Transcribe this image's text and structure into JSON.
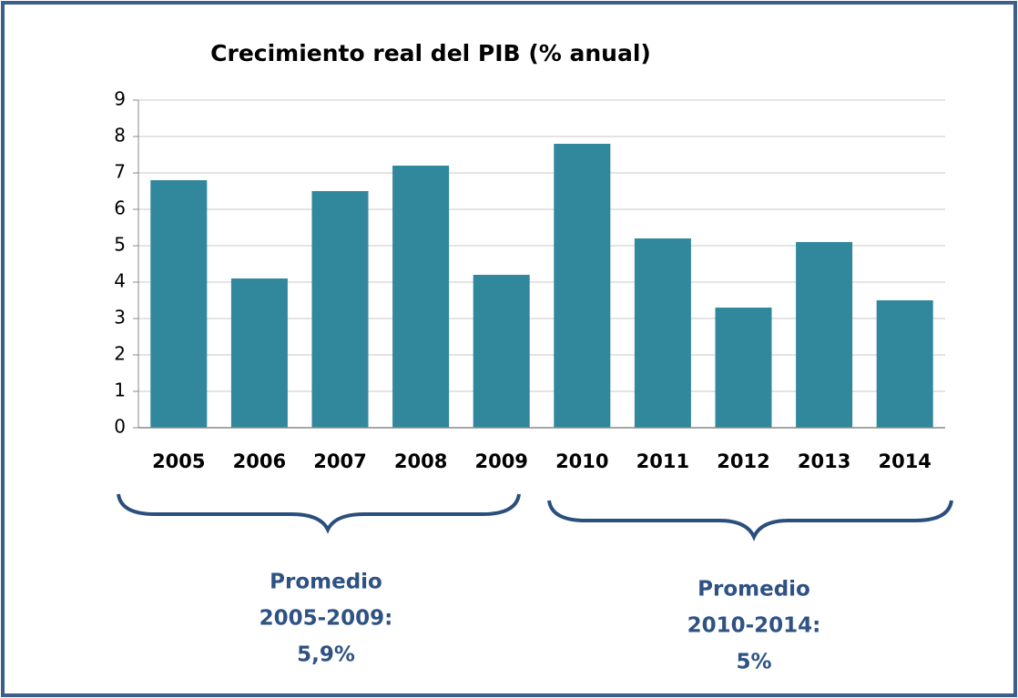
{
  "chart_data": {
    "type": "bar",
    "title": "Crecimiento real del PIB (% anual)",
    "categories": [
      "2005",
      "2006",
      "2007",
      "2008",
      "2009",
      "2010",
      "2011",
      "2012",
      "2013",
      "2014"
    ],
    "values": [
      6.8,
      4.1,
      6.5,
      7.2,
      4.2,
      7.8,
      5.2,
      3.3,
      5.1,
      3.5
    ],
    "color": "#31879c",
    "ylim": [
      0,
      9
    ],
    "yticks": [
      0,
      1,
      2,
      3,
      4,
      5,
      6,
      7,
      8,
      9
    ],
    "grid": true,
    "annotations": [
      {
        "lines": [
          "Promedio",
          "2005-2009:",
          "5,9%"
        ]
      },
      {
        "lines": [
          "Promedio",
          "2010-2014:",
          "5%"
        ]
      }
    ]
  }
}
